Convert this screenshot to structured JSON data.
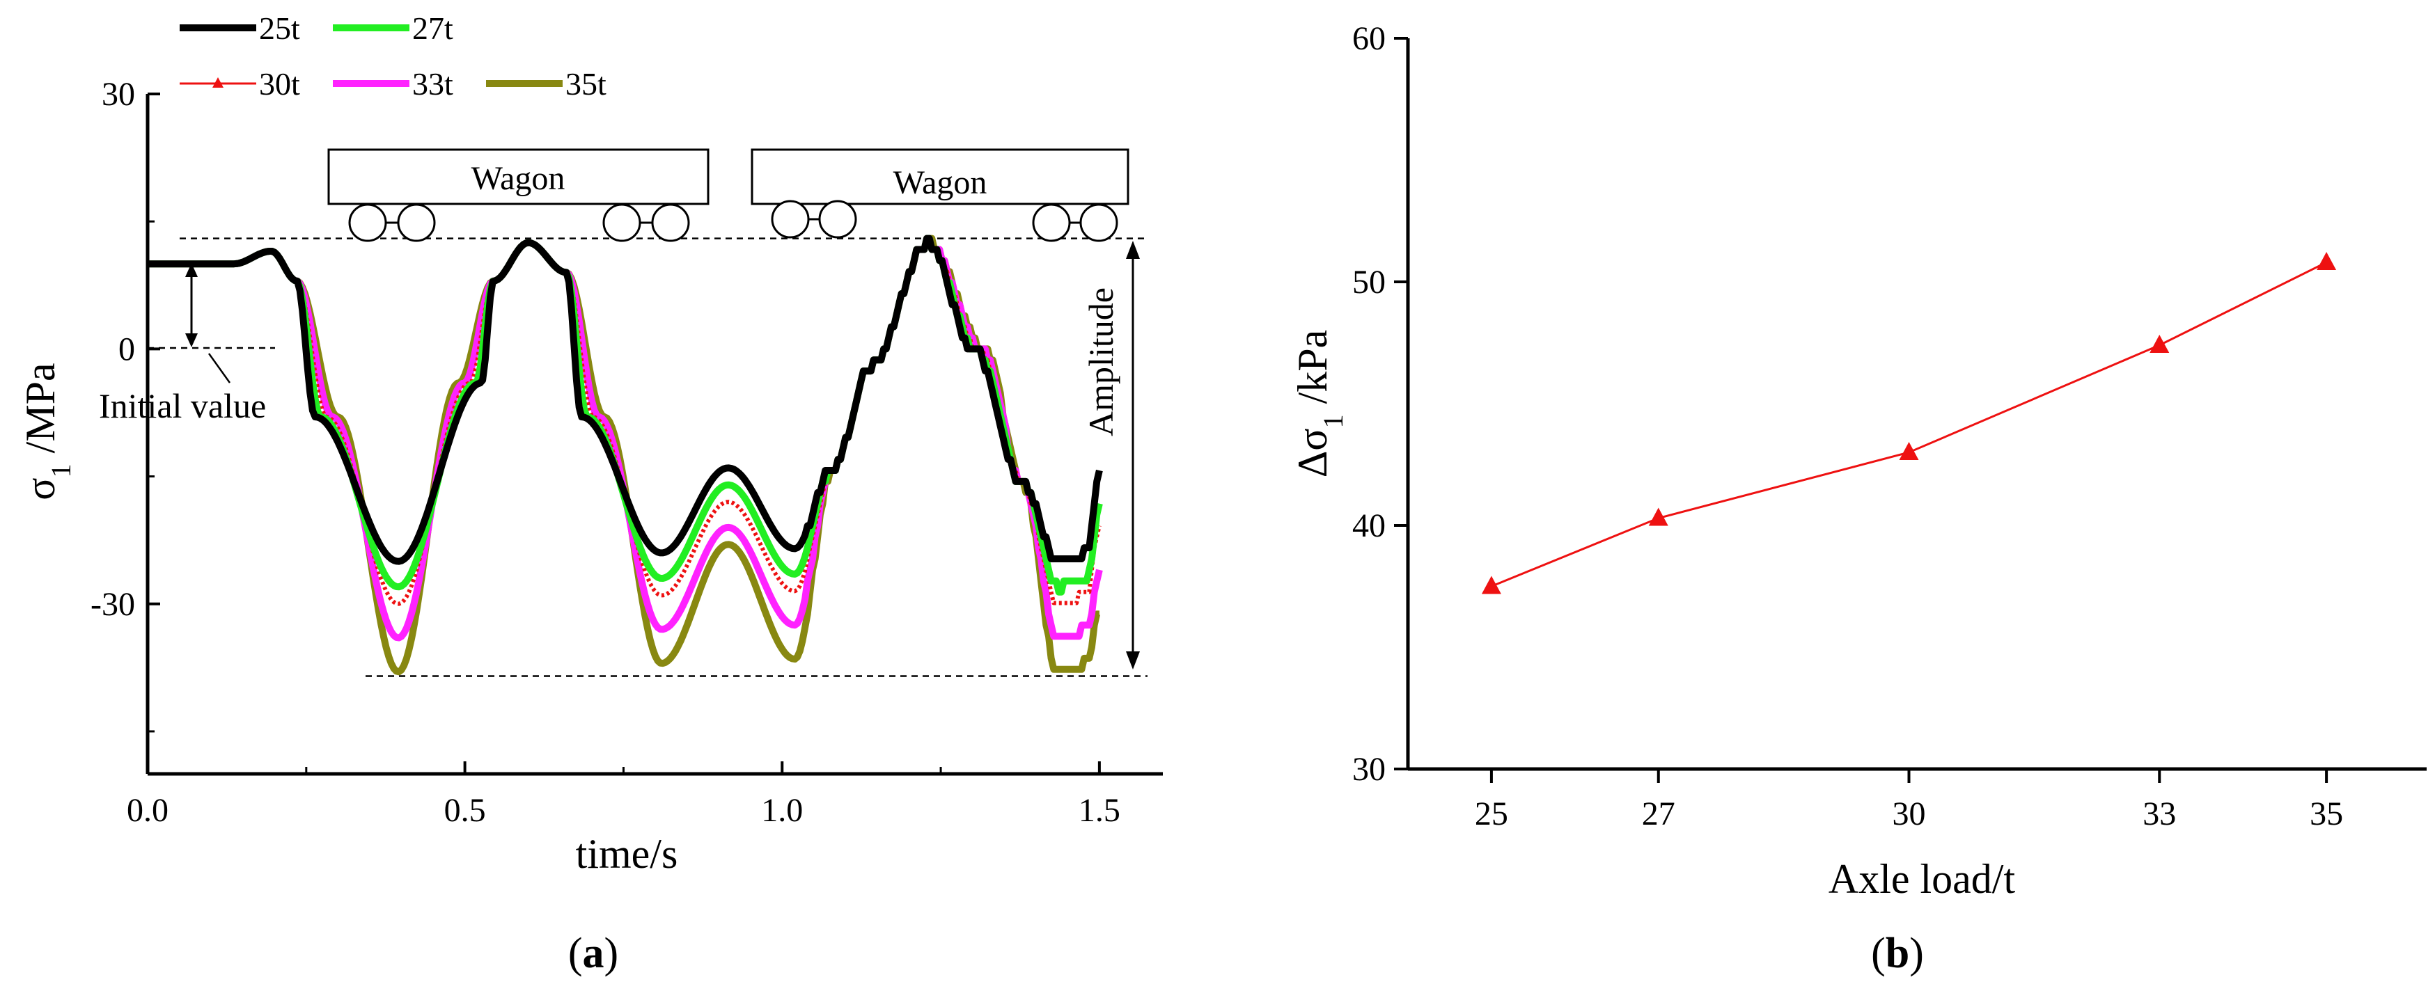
{
  "captions": {
    "a_open": "(",
    "a_letter": "a",
    "a_close": ")",
    "b_open": "(",
    "b_letter": "b",
    "b_close": ")"
  },
  "annotations": {
    "wagon1": "Wagon",
    "wagon2": "Wagon",
    "initial_value": "Initial value",
    "amplitude": "Amplitude"
  },
  "chart_data": [
    {
      "type": "line",
      "panel": "a",
      "xlabel": "time/s",
      "ylabel_main": "σ",
      "ylabel_sub": "1",
      "ylabel_unit": " /MPa",
      "xlim": [
        0,
        1.6
      ],
      "ylim": [
        -50,
        30
      ],
      "xticks": [
        0,
        0.5,
        1.0,
        1.5
      ],
      "xtick_labels": [
        "0.0",
        "0.5",
        "1.0",
        "1.5"
      ],
      "yticks": [
        30,
        0,
        -30
      ],
      "ytick_labels": [
        "30",
        "0",
        "-30"
      ],
      "legend_position": "top-left",
      "reference_lines": {
        "upper": 13,
        "lower": -38.5
      },
      "initial_value": 10,
      "series": [
        {
          "name": "25t",
          "color": "#000000",
          "min1": -25,
          "min2": -24,
          "mid_peak": -14,
          "min3": -25
        },
        {
          "name": "27t",
          "color": "#22ee22",
          "min1": -28,
          "min2": -27,
          "mid_peak": -16,
          "min3": -28
        },
        {
          "name": "30t",
          "color": "#ee1111",
          "min1": -30,
          "min2": -29,
          "mid_peak": -18,
          "min3": -30
        },
        {
          "name": "33t",
          "color": "#ff22ff",
          "min1": -34,
          "min2": -33,
          "mid_peak": -21,
          "min3": -34
        },
        {
          "name": "35t",
          "color": "#888811",
          "min1": -38,
          "min2": -37,
          "mid_peak": -23,
          "min3": -38
        }
      ]
    },
    {
      "type": "line",
      "panel": "b",
      "xlabel": "Axle load/t",
      "ylabel_main": "Δσ",
      "ylabel_sub": "1",
      "ylabel_unit": " /kPa",
      "xlim": [
        24,
        36.2
      ],
      "ylim": [
        30,
        60
      ],
      "xticks": [
        25,
        27,
        30,
        33,
        35
      ],
      "xtick_labels": [
        "25",
        "27",
        "30",
        "33",
        "35"
      ],
      "yticks": [
        30,
        40,
        50,
        60
      ],
      "ytick_labels": [
        "30",
        "40",
        "50",
        "60"
      ],
      "color": "#ee1111",
      "marker": "triangle",
      "x": [
        25,
        27,
        30,
        33,
        35
      ],
      "y": [
        37.5,
        40.3,
        43.0,
        47.4,
        50.8
      ]
    }
  ]
}
